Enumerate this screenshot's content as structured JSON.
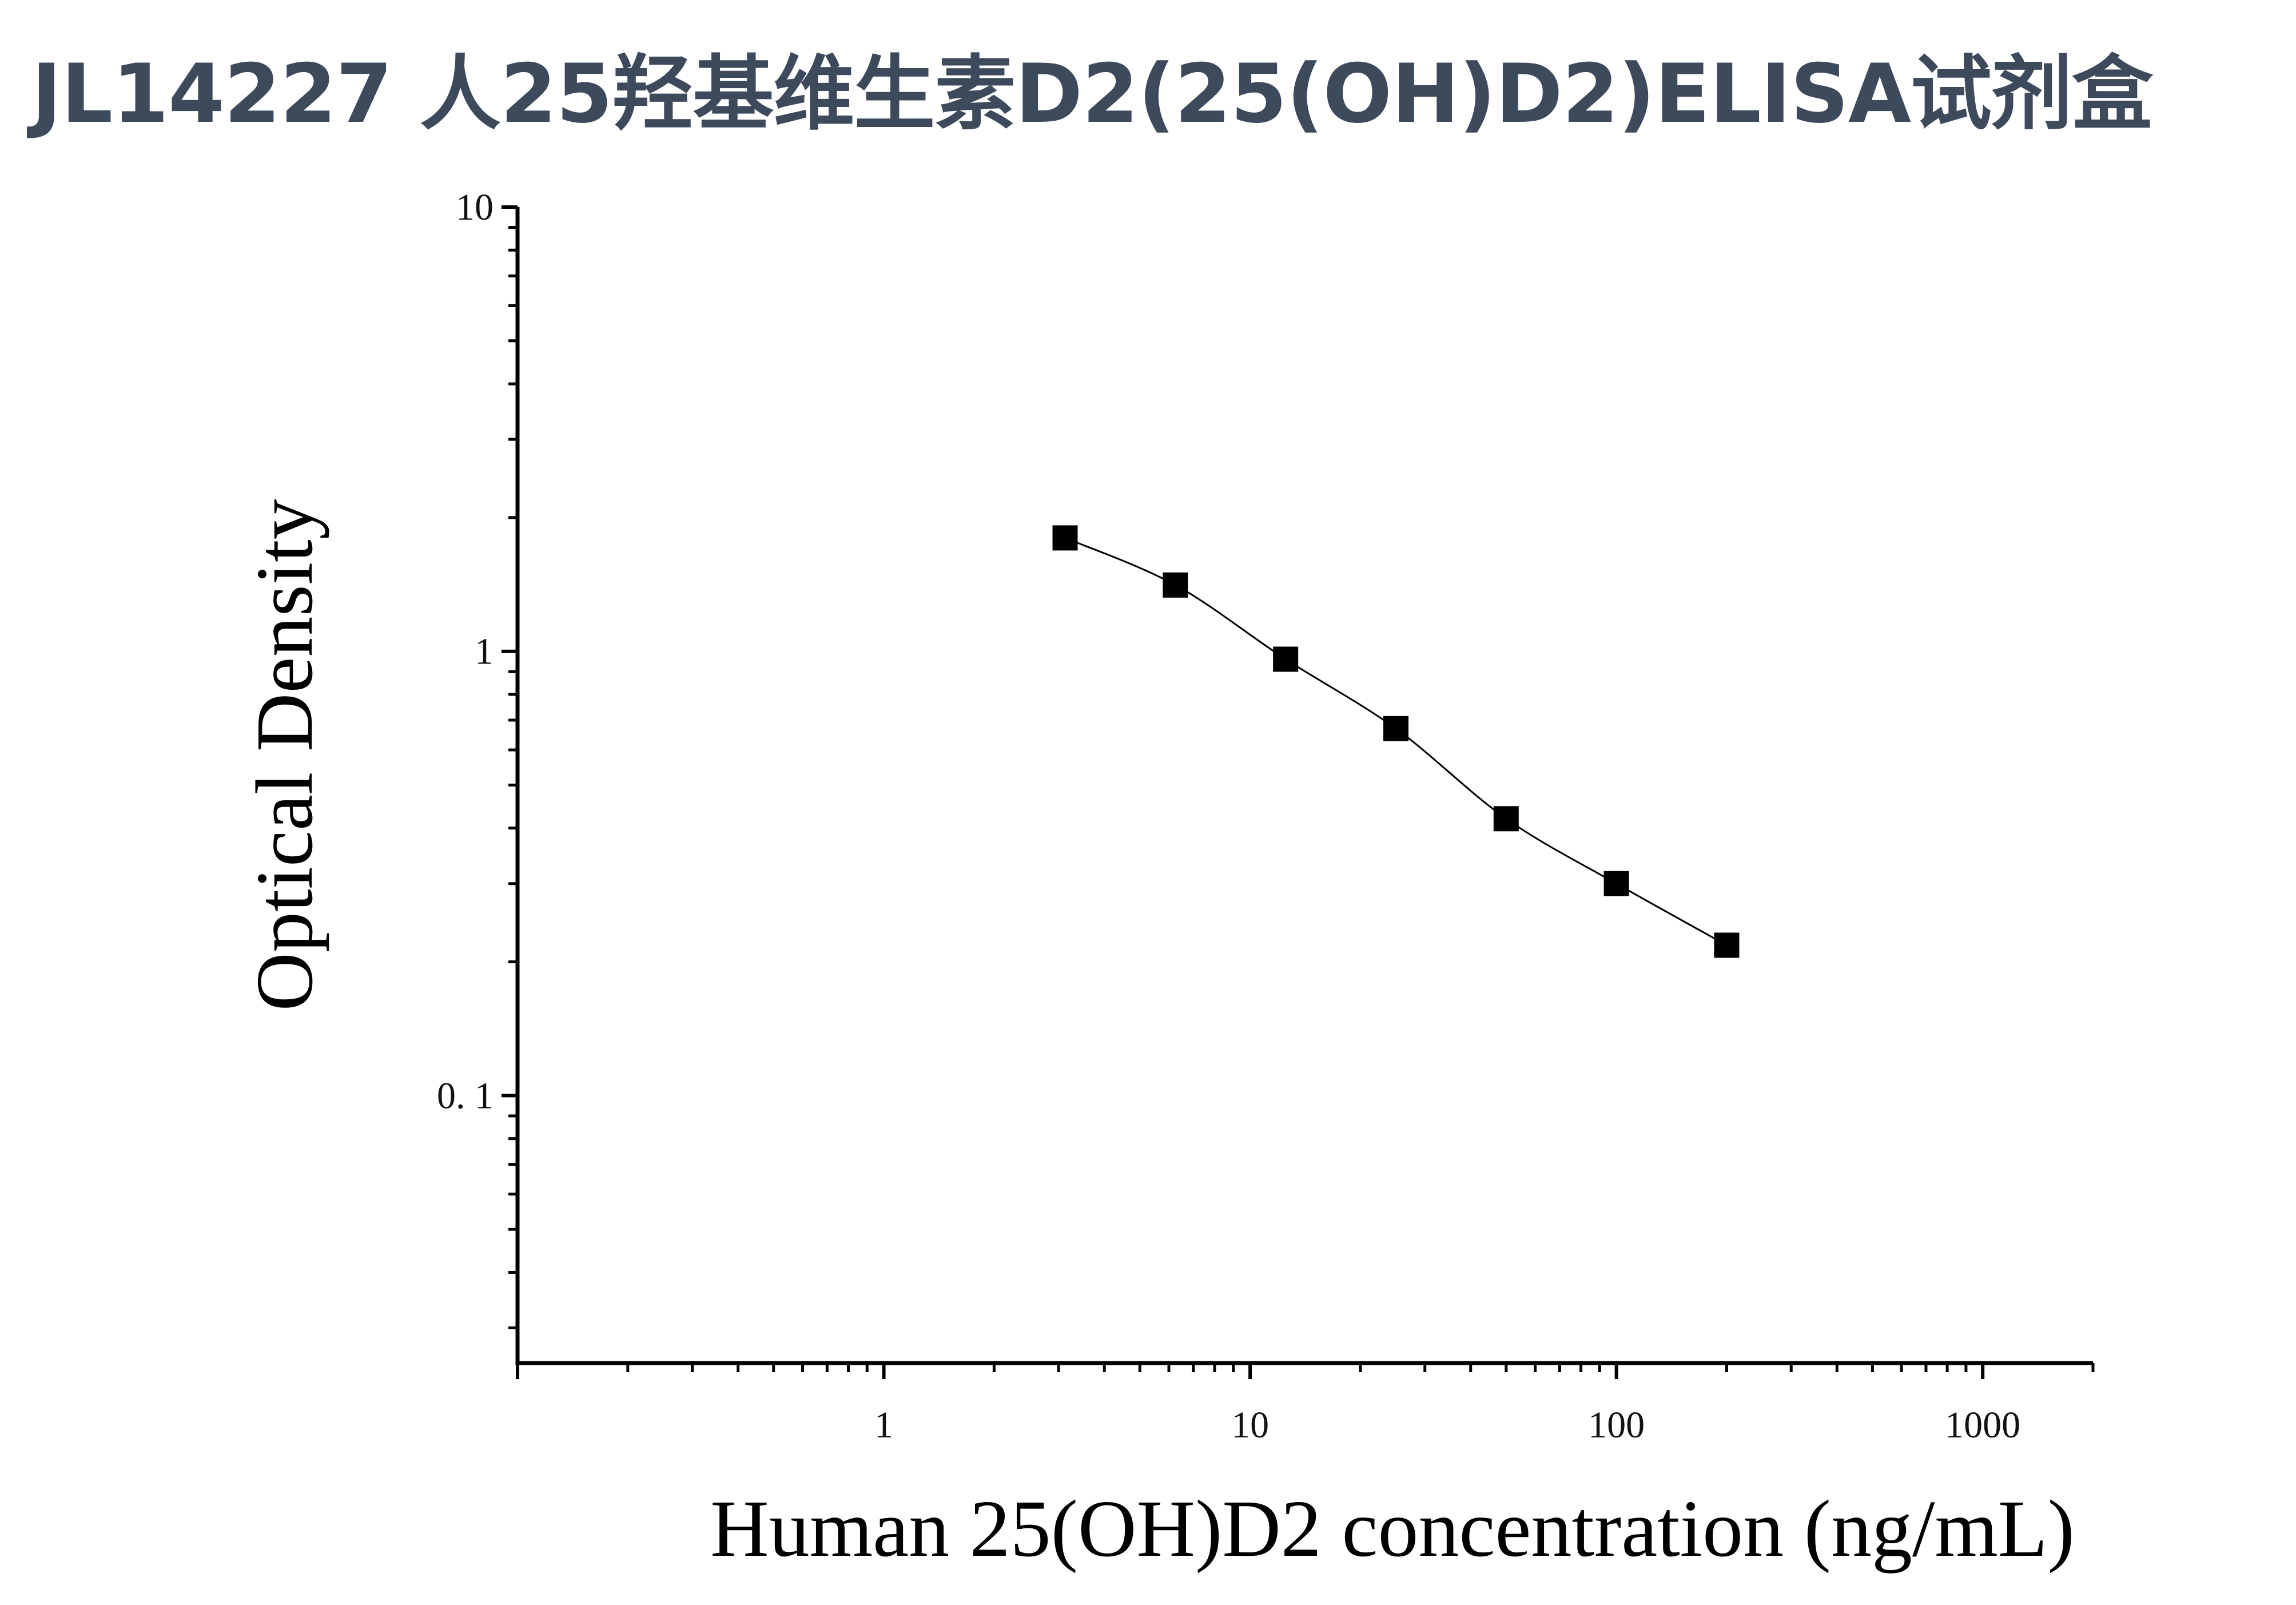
{
  "title": "JL14227 人25羟基维生素D2(25(OH)D2)ELISA试剂盒",
  "chart_data": {
    "type": "scatter",
    "xlabel": "Human 25(OH)D2 concentration (ng/mL)",
    "ylabel": "Optical Density",
    "xscale": "log",
    "yscale": "log",
    "xlim": [
      0.1,
      2000
    ],
    "ylim": [
      0.025,
      10
    ],
    "xticks": [
      {
        "value": 1,
        "label": "1"
      },
      {
        "value": 10,
        "label": "10"
      },
      {
        "value": 100,
        "label": "100"
      },
      {
        "value": 1000,
        "label": "1000"
      }
    ],
    "yticks": [
      {
        "value": 0.1,
        "label": "0. 1"
      },
      {
        "value": 1,
        "label": "1"
      },
      {
        "value": 10,
        "label": "10"
      }
    ],
    "grid": false,
    "legend": "none",
    "marker": "square",
    "fit_line": "smooth curve through points",
    "color": "#000000",
    "series": [
      {
        "x": [
          3.125,
          6.25,
          12.5,
          25,
          50,
          100,
          200
        ],
        "y": [
          1.8,
          1.41,
          0.96,
          0.67,
          0.42,
          0.3,
          0.218
        ]
      }
    ]
  }
}
